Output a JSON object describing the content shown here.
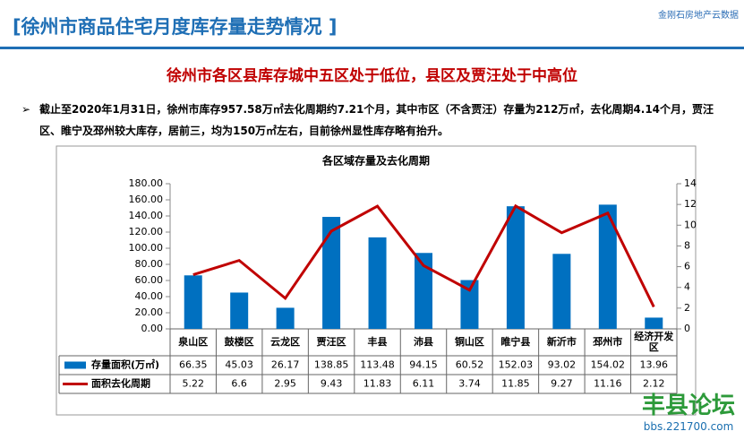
{
  "header": {
    "title": "[徐州市商品住宅月度库存量走势情况 ]",
    "brand": "金刚石房地产云数据"
  },
  "headline": "徐州市各区县库存城中五区处于低位，县区及贾汪处于中高位",
  "bullet": "截止至2020年1月31日，徐州市库存957.58万㎡去化周期约7.21个月，其中市区（不含贾汪）存量为212万㎡，去化周期4.14个月，贾汪区、睢宁及邳州较大库存，居前三，均为150万㎡左右，目前徐州显性库存略有抬升。",
  "chart_data": {
    "type": "bar",
    "title": "各区域存量及去化周期",
    "categories": [
      "泉山区",
      "鼓楼区",
      "云龙区",
      "贾汪区",
      "丰县",
      "沛县",
      "铜山区",
      "睢宁县",
      "新沂市",
      "邳州市",
      "经济开发区"
    ],
    "series": [
      {
        "name": "存量面积(万㎡)",
        "color": "#0070c0",
        "values": [
          66.35,
          45.03,
          26.17,
          138.85,
          113.48,
          94.15,
          60.52,
          152.03,
          93.02,
          154.02,
          13.96
        ]
      },
      {
        "name": "面积去化周期",
        "color": "#c00000",
        "type": "line",
        "axis": "y2",
        "values": [
          5.22,
          6.6,
          2.95,
          9.43,
          11.83,
          6.11,
          3.74,
          11.85,
          9.27,
          11.16,
          2.12
        ]
      }
    ],
    "ylim": [
      0,
      180
    ],
    "yticks": [
      {
        "value": 0,
        "label": "0.00"
      },
      {
        "value": 20,
        "label": "20.00"
      },
      {
        "value": 40,
        "label": "40.00"
      },
      {
        "value": 60,
        "label": "60.00"
      },
      {
        "value": 80,
        "label": "80.00"
      },
      {
        "value": 100,
        "label": "100.00"
      },
      {
        "value": 120,
        "label": "120.00"
      },
      {
        "value": 140,
        "label": "140.00"
      },
      {
        "value": 160,
        "label": "160.00"
      },
      {
        "value": 180,
        "label": "180.00"
      }
    ],
    "y2lim": [
      0,
      14
    ],
    "y2ticks": [
      0,
      2,
      4,
      6,
      8,
      10,
      12,
      14
    ]
  },
  "watermark": {
    "title": "丰县论坛",
    "url": "bbs.221700.com"
  }
}
